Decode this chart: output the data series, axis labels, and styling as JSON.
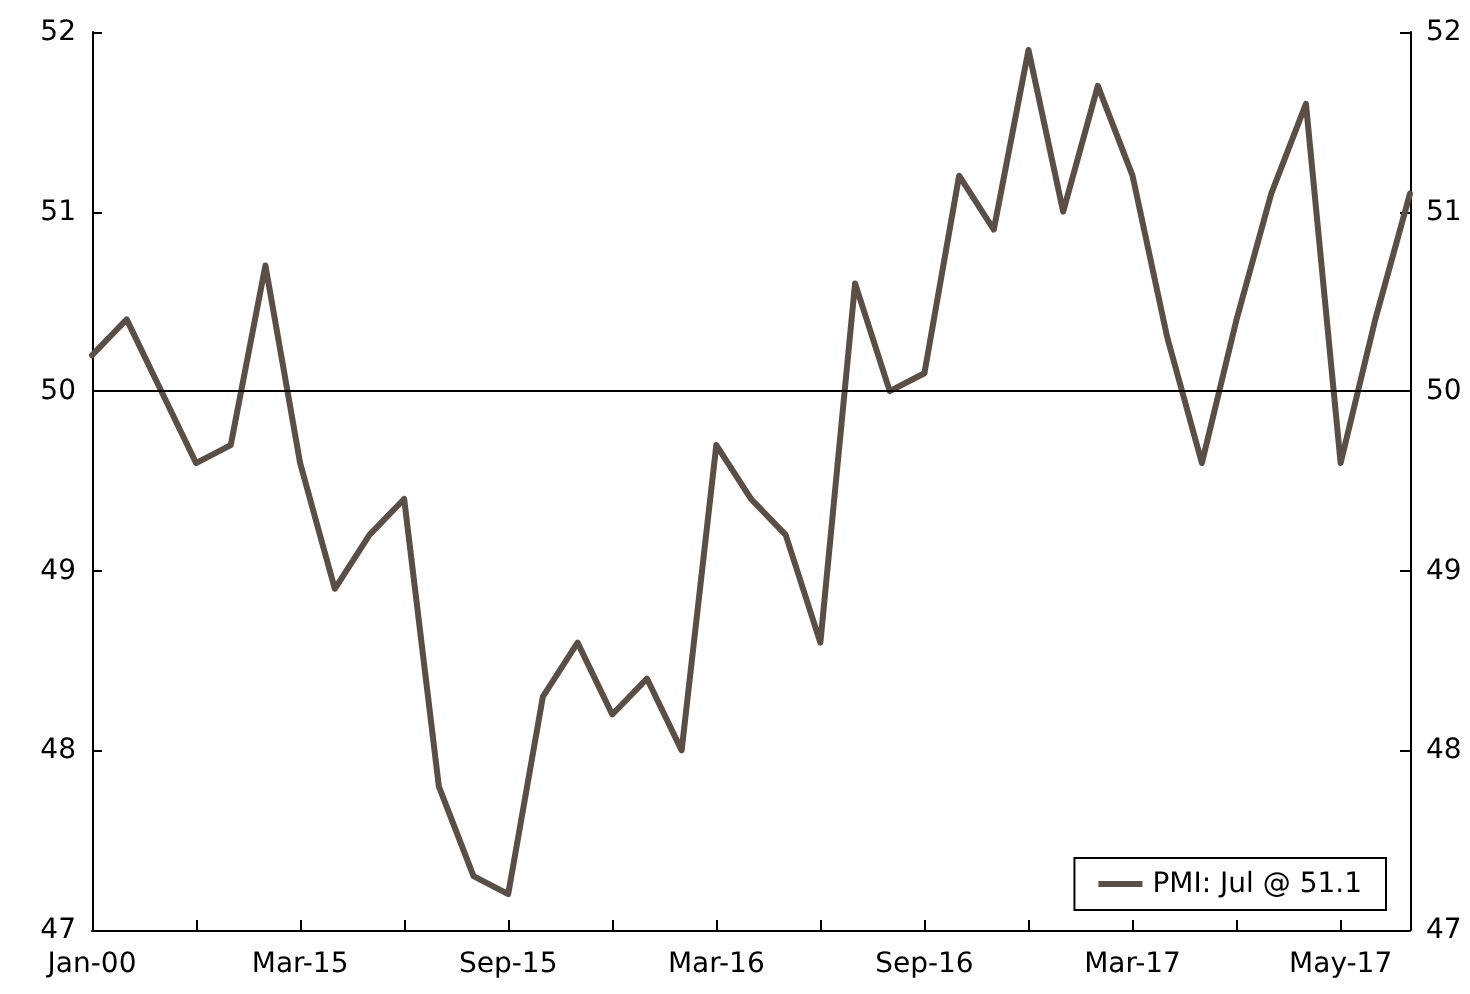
{
  "chart_data": {
    "type": "line",
    "categories": [
      "Jan-00",
      null,
      null,
      null,
      null,
      null,
      "Mar-15",
      null,
      null,
      null,
      null,
      null,
      "Sep-15",
      null,
      null,
      null,
      null,
      null,
      "Mar-16",
      null,
      null,
      null,
      null,
      null,
      "Sep-16",
      null,
      null,
      null,
      null,
      null,
      "Mar-17",
      null,
      null,
      null,
      null,
      null,
      "May-17",
      null,
      null
    ],
    "series": [
      {
        "name": "PMI: Jul @ 51.1",
        "color": "#5b4e44",
        "values": [
          50.2,
          50.4,
          50.0,
          49.6,
          49.7,
          50.7,
          49.6,
          48.9,
          49.2,
          49.4,
          47.8,
          47.3,
          47.2,
          48.3,
          48.6,
          48.2,
          48.4,
          48.0,
          49.7,
          49.4,
          49.2,
          48.6,
          50.6,
          50.0,
          50.1,
          51.2,
          50.9,
          51.9,
          51.0,
          51.7,
          51.2,
          50.3,
          49.6,
          50.4,
          51.1,
          51.6,
          49.6,
          50.4,
          51.1
        ]
      }
    ],
    "ylim": [
      47,
      52
    ],
    "yticks": [
      47,
      48,
      49,
      50,
      51,
      52
    ],
    "y2lim": [
      47,
      52
    ],
    "y2ticks": [
      47,
      48,
      49,
      50,
      51,
      52
    ],
    "ref_lines": [
      {
        "axis": "y",
        "value": 50,
        "color": "#000000"
      }
    ],
    "grid": false,
    "legend": "bottom right",
    "marker": "none",
    "line_style": "solid"
  }
}
